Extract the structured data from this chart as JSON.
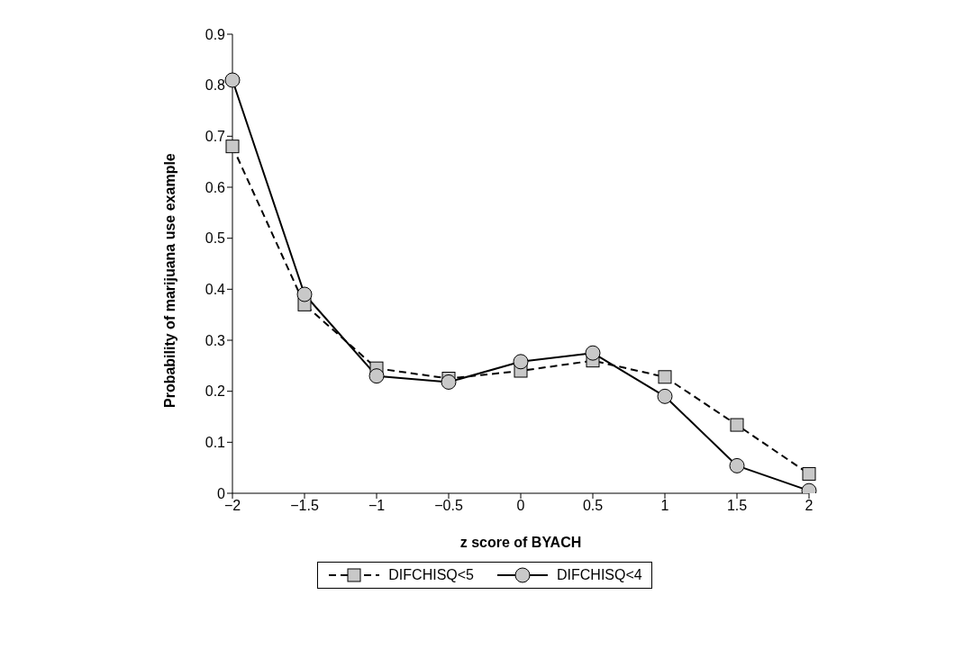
{
  "chart_data": {
    "type": "line",
    "xlabel": "z score of BYACH",
    "ylabel": "Probability of marijuana use example",
    "categories": [
      "−2",
      "−1.5",
      "−1",
      "−0.5",
      "0",
      "0.5",
      "1",
      "1.5",
      "2"
    ],
    "series": [
      {
        "name": "DIFCHISQ<5",
        "color": "#000000",
        "marker": "square",
        "line_style": "dashed",
        "values": [
          0.68,
          0.37,
          0.245,
          0.225,
          0.24,
          0.26,
          0.228,
          0.134,
          0.038
        ]
      },
      {
        "name": "DIFCHISQ<4",
        "color": "#000000",
        "marker": "circle",
        "line_style": "solid",
        "values": [
          0.81,
          0.39,
          0.23,
          0.218,
          0.258,
          0.275,
          0.19,
          0.054,
          0.005
        ]
      }
    ],
    "ylim": [
      0,
      0.9
    ],
    "yticks": [
      0,
      0.1,
      0.2,
      0.3,
      0.4,
      0.5,
      0.6,
      0.7,
      0.8,
      0.9
    ],
    "grid": false,
    "legend": "bottom"
  }
}
